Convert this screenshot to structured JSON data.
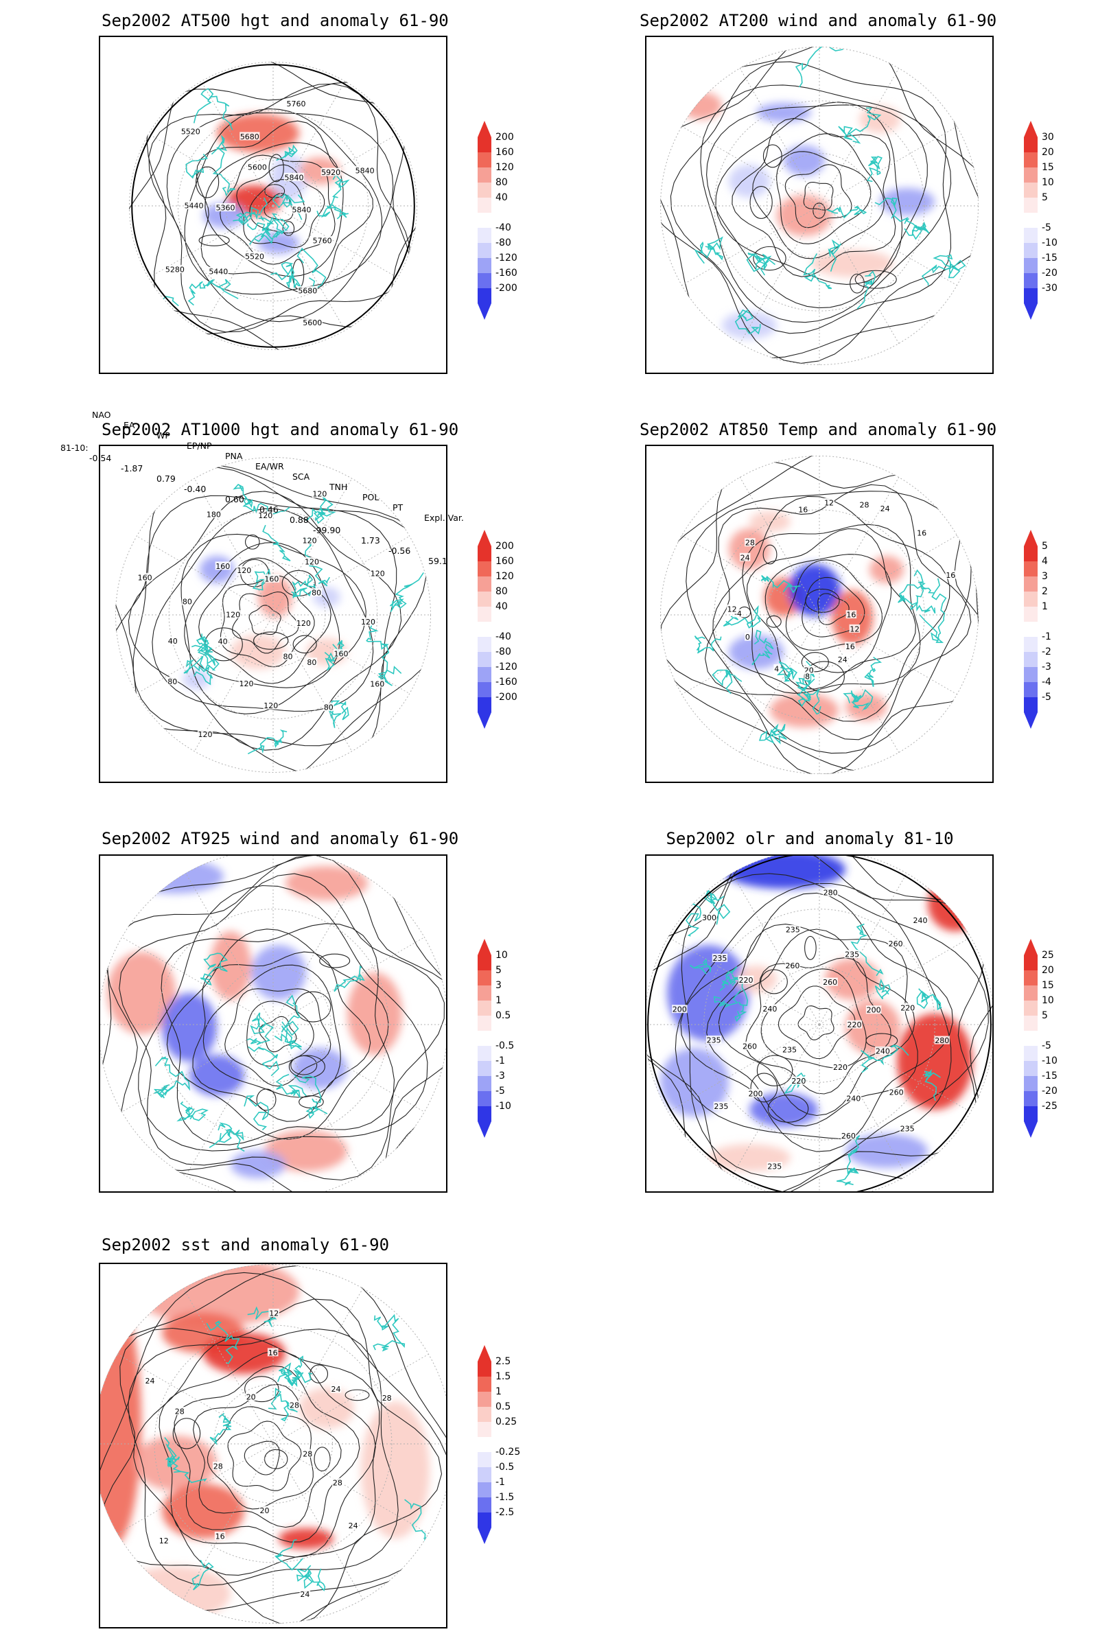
{
  "panels": [
    {
      "id": "p500",
      "title": "Sep2002 AT500 hgt and anomaly 61-90",
      "contour_labels": [
        "5840",
        "5760",
        "5680",
        "5600",
        "5520",
        "5440",
        "5280",
        "5360",
        "5440",
        "5520",
        "5600",
        "5680",
        "5760",
        "5840",
        "5920",
        "5840"
      ],
      "colorbar": [
        "200",
        "160",
        "120",
        "80",
        "40",
        "-40",
        "-80",
        "-120",
        "-160",
        "-200"
      ]
    },
    {
      "id": "p200",
      "title": "Sep2002 AT200 wind and anomaly 61-90",
      "contour_labels": [],
      "colorbar": [
        "30",
        "20",
        "15",
        "10",
        "5",
        "-5",
        "-10",
        "-15",
        "-20",
        "-30"
      ]
    },
    {
      "id": "p1000",
      "title": "Sep2002 AT1000 hgt and anomaly 61-90",
      "contour_labels": [
        "120",
        "160",
        "160",
        "80",
        "80",
        "80",
        "120",
        "120",
        "120",
        "80",
        "40",
        "40",
        "120",
        "80",
        "160",
        "160",
        "180",
        "120",
        "120",
        "160",
        "120",
        "120",
        "120",
        "120",
        "80",
        "120"
      ],
      "colorbar": [
        "200",
        "160",
        "120",
        "80",
        "40",
        "-40",
        "-80",
        "-120",
        "-160",
        "-200"
      ]
    },
    {
      "id": "p850",
      "title": "Sep2002 AT850 Temp and anomaly 61-90",
      "contour_labels": [
        "16",
        "12",
        "16",
        "24",
        "20",
        "8",
        "4",
        "0",
        "-4",
        "12",
        "24",
        "28",
        "16",
        "12",
        "28",
        "24",
        "16",
        "16"
      ],
      "colorbar": [
        "5",
        "4",
        "3",
        "2",
        "1",
        "-1",
        "-2",
        "-3",
        "-4",
        "-5"
      ]
    },
    {
      "id": "p925",
      "title": "Sep2002 AT925 wind and anomaly 61-90",
      "contour_labels": [],
      "colorbar": [
        "10",
        "5",
        "3",
        "1",
        "0.5",
        "-0.5",
        "-1",
        "-3",
        "-5",
        "-10"
      ]
    },
    {
      "id": "polr",
      "title": "Sep2002 olr and anomaly 81-10",
      "contour_labels": [
        "220",
        "240",
        "260",
        "235",
        "220",
        "240",
        "260",
        "235",
        "220",
        "200",
        "235",
        "235",
        "260",
        "235",
        "200",
        "240",
        "220",
        "235",
        "300",
        "260",
        "235",
        "280",
        "260",
        "235",
        "260",
        "240",
        "200",
        "220",
        "280"
      ],
      "colorbar": [
        "25",
        "20",
        "15",
        "10",
        "5",
        "-5",
        "-10",
        "-15",
        "-20",
        "-25"
      ]
    },
    {
      "id": "psst",
      "title": "Sep2002 sst and anomaly 61-90",
      "contour_labels": [
        "28",
        "28",
        "24",
        "24",
        "20",
        "16",
        "12",
        "28",
        "28",
        "24",
        "20",
        "16",
        "12",
        "28",
        "24",
        "28"
      ],
      "colorbar": [
        "2.5",
        "1.5",
        "1",
        "0.5",
        "0.25",
        "-0.25",
        "-0.5",
        "-1",
        "-1.5",
        "-2.5"
      ]
    }
  ],
  "teleconnections": {
    "header": [
      "NAO",
      "EA",
      "WP",
      "EP/NP",
      "PNA",
      "EA/WR",
      "SCA",
      "TNH",
      "POL",
      "PT",
      "Expl. Var."
    ],
    "row_label": "81-10:",
    "values": [
      "-0.54",
      "-1.87",
      "0.79",
      "-0.40",
      "0.60",
      "0.46",
      "0.88",
      "-99.90",
      "1.73",
      "-0.56",
      "59.1"
    ]
  },
  "colors": {
    "coast": "#2ec8c0",
    "contour": "#222222",
    "grid": "#b0b0b0",
    "red": [
      "#e5332b",
      "#f06858",
      "#f6a096",
      "#fbcfc8",
      "#fdeaea"
    ],
    "blue": [
      "#eaeafd",
      "#cdd0fb",
      "#9da3f6",
      "#6a70f0",
      "#2f36e6"
    ]
  }
}
